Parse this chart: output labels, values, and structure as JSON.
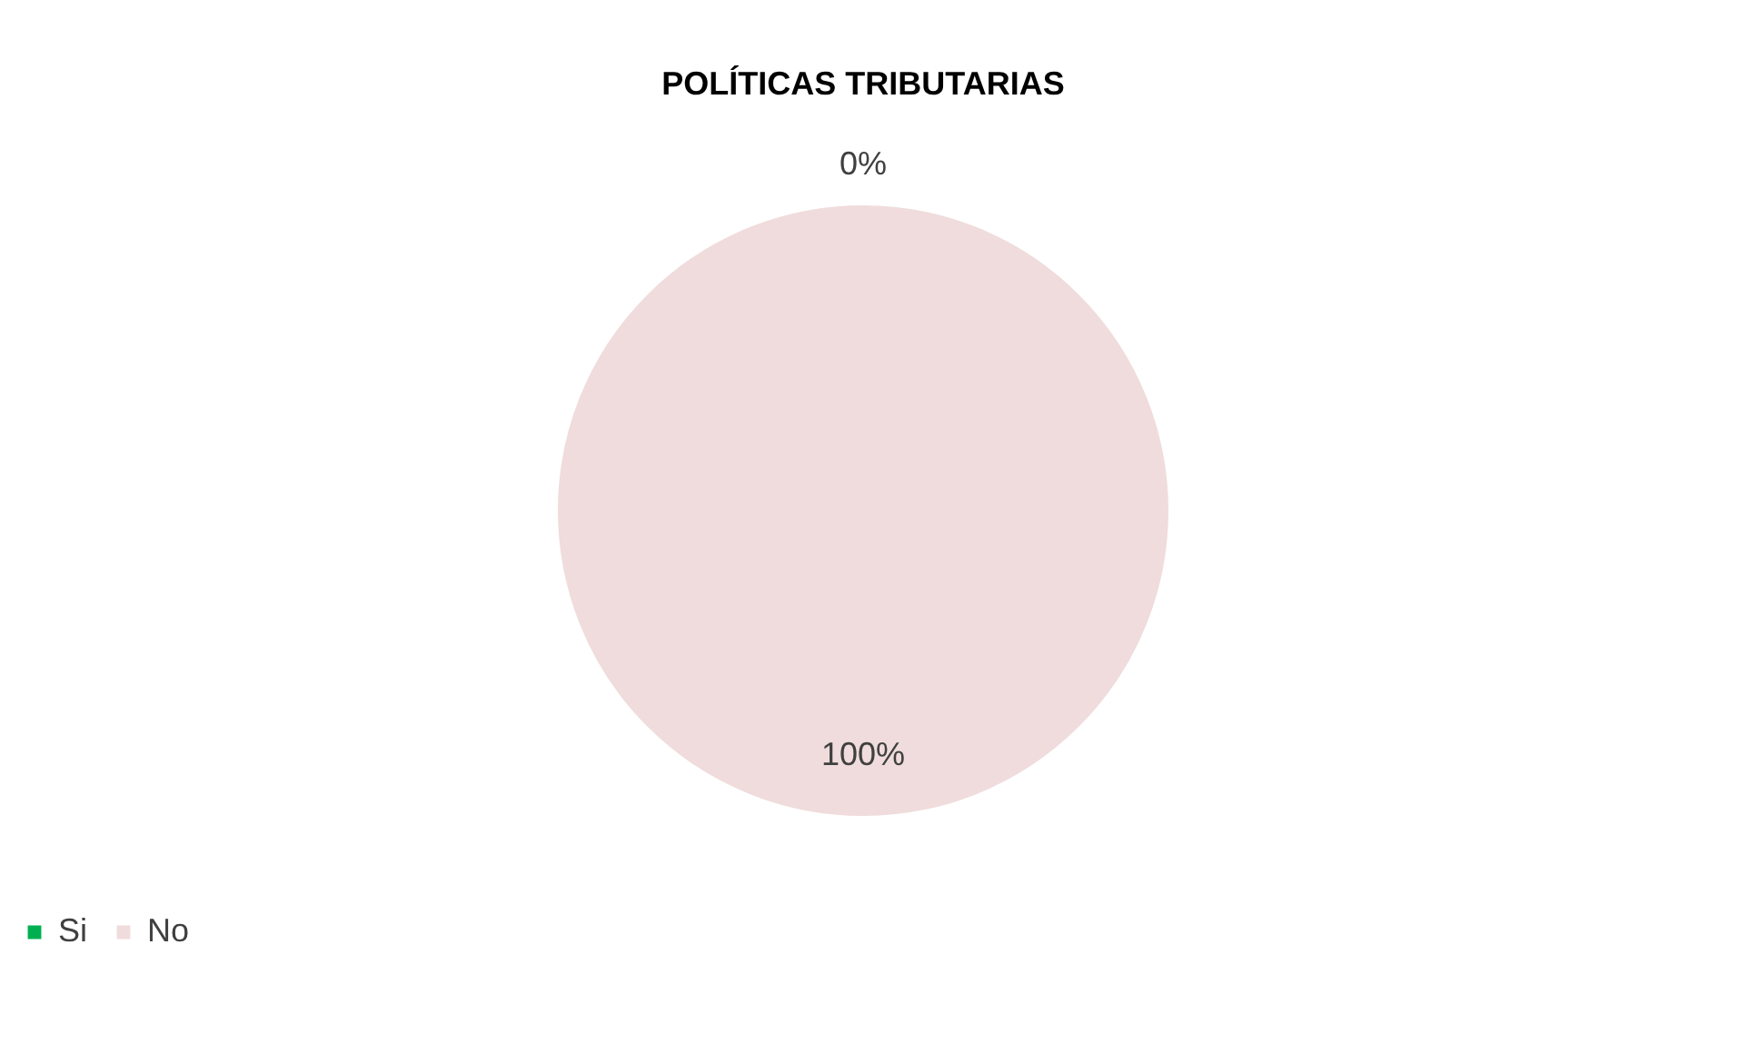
{
  "chart_data": {
    "type": "pie",
    "title": "POLÍTICAS TRIBUTARIAS",
    "categories": [
      "Si",
      "No"
    ],
    "values": [
      0,
      100
    ],
    "colors": [
      "#00b050",
      "#f0dcdc"
    ],
    "value_labels": [
      "0%",
      "100%"
    ],
    "legend": "bottom"
  }
}
